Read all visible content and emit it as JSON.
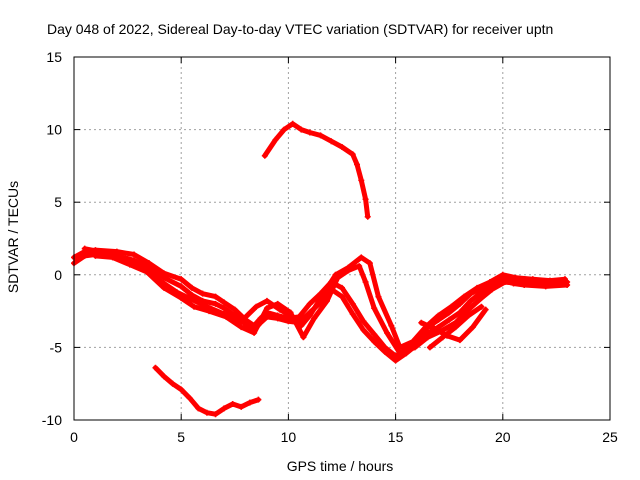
{
  "chart_data": {
    "type": "line",
    "title": "Day 048 of 2022, Sidereal Day-to-day VTEC variation (SDTVAR) for receiver uptn",
    "xlabel": "GPS time / hours",
    "ylabel": "SDTVAR / TECUs",
    "xlim": [
      0,
      25
    ],
    "ylim": [
      -10,
      15
    ],
    "xticks": [
      0,
      5,
      10,
      15,
      20,
      25
    ],
    "yticks": [
      -10,
      -5,
      0,
      5,
      10,
      15
    ],
    "xtick_labels": [
      "0",
      "5",
      "10",
      "15",
      "20",
      "25"
    ],
    "ytick_labels": [
      "-10",
      "-5",
      "0",
      "5",
      "10",
      "15"
    ],
    "grid": true,
    "color": "#ff0000",
    "series": [
      {
        "name": "track-main-a",
        "points": [
          [
            0,
            1.2
          ],
          [
            0.5,
            1.6
          ],
          [
            1,
            1.7
          ],
          [
            2,
            1.6
          ],
          [
            2.8,
            1.4
          ],
          [
            3.5,
            0.8
          ],
          [
            4.2,
            0.1
          ],
          [
            5,
            -0.3
          ],
          [
            5.5,
            -0.9
          ],
          [
            6,
            -1.3
          ],
          [
            6.6,
            -1.5
          ],
          [
            7,
            -1.9
          ],
          [
            7.5,
            -2.4
          ],
          [
            8,
            -3.1
          ],
          [
            8.4,
            -3.5
          ],
          [
            8.7,
            -3.0
          ],
          [
            9,
            -2.6
          ],
          [
            9.5,
            -2.8
          ],
          [
            10,
            -3.0
          ],
          [
            10.5,
            -2.9
          ],
          [
            11,
            -2.0
          ],
          [
            11.5,
            -1.3
          ],
          [
            12,
            -0.5
          ],
          [
            12.5,
            -0.9
          ],
          [
            13,
            -2.0
          ],
          [
            13.5,
            -3.2
          ],
          [
            14,
            -4.1
          ],
          [
            14.5,
            -5.0
          ],
          [
            15,
            -5.6
          ],
          [
            15.5,
            -5.1
          ],
          [
            16,
            -4.4
          ],
          [
            16.5,
            -3.6
          ],
          [
            17,
            -3.1
          ],
          [
            17.5,
            -2.6
          ],
          [
            18,
            -2.0
          ],
          [
            18.5,
            -1.3
          ],
          [
            19,
            -0.9
          ],
          [
            19.5,
            -0.5
          ],
          [
            20,
            -0.2
          ],
          [
            20.5,
            -0.4
          ],
          [
            21,
            -0.5
          ],
          [
            22,
            -0.6
          ],
          [
            23,
            -0.5
          ]
        ]
      },
      {
        "name": "track-main-b",
        "points": [
          [
            0,
            0.8
          ],
          [
            0.5,
            1.3
          ],
          [
            1,
            1.4
          ],
          [
            2,
            1.3
          ],
          [
            2.8,
            1.0
          ],
          [
            3.5,
            0.5
          ],
          [
            4.2,
            -0.2
          ],
          [
            5,
            -0.8
          ],
          [
            5.5,
            -1.4
          ],
          [
            6,
            -1.8
          ],
          [
            6.6,
            -2.0
          ],
          [
            7,
            -2.3
          ],
          [
            7.5,
            -2.8
          ],
          [
            8,
            -3.4
          ],
          [
            8.4,
            -3.8
          ],
          [
            8.7,
            -3.3
          ],
          [
            9,
            -2.9
          ],
          [
            9.5,
            -3.0
          ],
          [
            10,
            -3.2
          ],
          [
            10.5,
            -3.3
          ],
          [
            11,
            -2.6
          ],
          [
            11.5,
            -1.9
          ],
          [
            12,
            -1.0
          ],
          [
            12.5,
            -1.5
          ],
          [
            13,
            -2.7
          ],
          [
            13.5,
            -3.8
          ],
          [
            14,
            -4.6
          ],
          [
            14.5,
            -5.3
          ],
          [
            15,
            -5.9
          ],
          [
            15.5,
            -5.4
          ],
          [
            16,
            -4.8
          ],
          [
            16.5,
            -4.0
          ],
          [
            17,
            -3.6
          ],
          [
            17.5,
            -3.1
          ],
          [
            18,
            -2.6
          ],
          [
            18.5,
            -1.8
          ],
          [
            19,
            -1.2
          ],
          [
            19.5,
            -0.7
          ],
          [
            20,
            -0.4
          ],
          [
            20.5,
            -0.6
          ],
          [
            21,
            -0.7
          ],
          [
            22,
            -0.8
          ],
          [
            23,
            -0.7
          ]
        ]
      },
      {
        "name": "track-main-c",
        "points": [
          [
            0.5,
            1.8
          ],
          [
            1.5,
            1.5
          ],
          [
            2.5,
            1.1
          ],
          [
            3.2,
            0.6
          ],
          [
            4,
            -0.4
          ],
          [
            4.8,
            -1.2
          ],
          [
            5.5,
            -1.7
          ],
          [
            6.2,
            -2.2
          ],
          [
            7,
            -2.7
          ],
          [
            7.8,
            -3.2
          ],
          [
            8.5,
            -2.2
          ],
          [
            9,
            -1.8
          ],
          [
            9.6,
            -2.4
          ],
          [
            10.2,
            -2.9
          ],
          [
            10.6,
            -3.5
          ],
          [
            11,
            -2.8
          ],
          [
            11.6,
            -1.4
          ],
          [
            12.2,
            0.0
          ],
          [
            12.8,
            0.5
          ],
          [
            13.4,
            1.2
          ],
          [
            13.8,
            0.8
          ],
          [
            14.2,
            -1.5
          ],
          [
            14.8,
            -3.5
          ],
          [
            15.2,
            -5.0
          ],
          [
            15.8,
            -4.6
          ],
          [
            16.4,
            -3.6
          ],
          [
            17,
            -2.8
          ],
          [
            17.6,
            -2.2
          ],
          [
            18.2,
            -1.5
          ],
          [
            18.8,
            -0.9
          ],
          [
            19.4,
            -0.5
          ],
          [
            20,
            0.0
          ],
          [
            20.6,
            -0.2
          ],
          [
            21.4,
            -0.3
          ],
          [
            22.2,
            -0.4
          ],
          [
            22.9,
            -0.3
          ]
        ]
      },
      {
        "name": "track-main-d",
        "points": [
          [
            1,
            1.3
          ],
          [
            1.8,
            1.2
          ],
          [
            2.6,
            0.7
          ],
          [
            3.4,
            0.2
          ],
          [
            4.2,
            -0.9
          ],
          [
            5,
            -1.6
          ],
          [
            5.6,
            -2.2
          ],
          [
            6.3,
            -2.5
          ],
          [
            7.1,
            -2.9
          ],
          [
            7.8,
            -3.6
          ],
          [
            8.4,
            -4.0
          ],
          [
            9,
            -2.3
          ],
          [
            9.5,
            -2.0
          ],
          [
            10.1,
            -2.6
          ],
          [
            10.7,
            -4.3
          ],
          [
            11.2,
            -3.0
          ],
          [
            11.8,
            -1.8
          ],
          [
            12.3,
            -0.2
          ],
          [
            12.8,
            0.3
          ],
          [
            13.3,
            0.6
          ],
          [
            13.6,
            -0.5
          ],
          [
            14,
            -2.3
          ],
          [
            14.6,
            -4.0
          ],
          [
            15.2,
            -5.4
          ],
          [
            15.9,
            -5.0
          ],
          [
            16.5,
            -4.3
          ],
          [
            17.1,
            -3.9
          ],
          [
            17.8,
            -3.3
          ],
          [
            18.4,
            -2.4
          ],
          [
            19,
            -1.6
          ],
          [
            19.5,
            -1.0
          ],
          [
            20.1,
            -0.5
          ],
          [
            20.8,
            -0.6
          ],
          [
            21.6,
            -0.5
          ],
          [
            22.5,
            -0.6
          ],
          [
            22.9,
            -0.6
          ]
        ]
      },
      {
        "name": "track-branch-e",
        "points": [
          [
            16.2,
            -3.3
          ],
          [
            16.8,
            -3.7
          ],
          [
            17.4,
            -4.2
          ],
          [
            18,
            -4.5
          ],
          [
            18.6,
            -3.6
          ],
          [
            19.2,
            -2.4
          ]
        ]
      },
      {
        "name": "track-branch-f",
        "points": [
          [
            16.6,
            -5.0
          ],
          [
            17.2,
            -4.3
          ],
          [
            17.8,
            -3.6
          ],
          [
            18.4,
            -2.8
          ],
          [
            19,
            -2.2
          ]
        ]
      },
      {
        "name": "track-upper",
        "points": [
          [
            8.9,
            8.2
          ],
          [
            9.4,
            9.3
          ],
          [
            9.8,
            10.0
          ],
          [
            10.2,
            10.4
          ],
          [
            10.6,
            10.0
          ],
          [
            11,
            9.8
          ],
          [
            11.5,
            9.6
          ],
          [
            12,
            9.2
          ],
          [
            12.5,
            8.8
          ],
          [
            13,
            8.3
          ],
          [
            13.2,
            7.6
          ],
          [
            13.4,
            6.5
          ],
          [
            13.6,
            5.2
          ],
          [
            13.7,
            4.0
          ]
        ]
      },
      {
        "name": "track-lower",
        "points": [
          [
            3.8,
            -6.4
          ],
          [
            4.2,
            -7.0
          ],
          [
            4.6,
            -7.5
          ],
          [
            5,
            -7.9
          ],
          [
            5.4,
            -8.5
          ],
          [
            5.8,
            -9.2
          ],
          [
            6.2,
            -9.5
          ],
          [
            6.6,
            -9.6
          ],
          [
            7,
            -9.2
          ],
          [
            7.4,
            -8.9
          ],
          [
            7.8,
            -9.1
          ],
          [
            8.2,
            -8.8
          ],
          [
            8.6,
            -8.6
          ]
        ]
      }
    ]
  }
}
